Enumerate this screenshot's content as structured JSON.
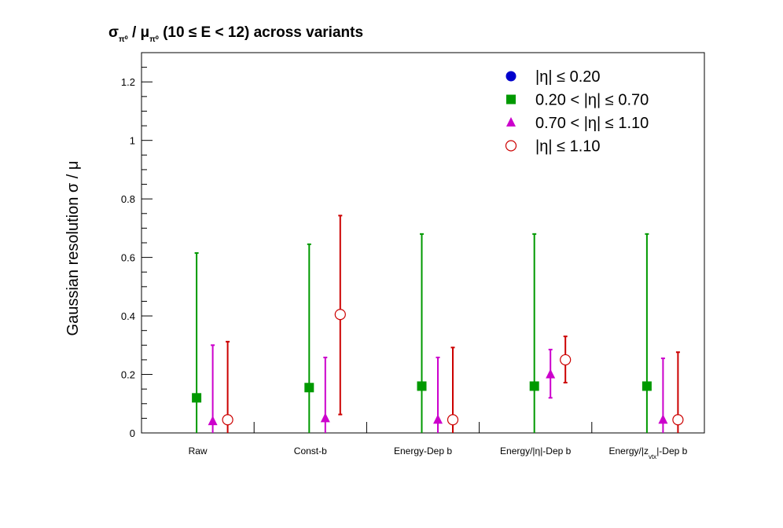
{
  "chart_data": {
    "type": "scatter",
    "title": "σπ⁰ / μπ⁰ (10 ≤ E < 12) across variants",
    "ylabel": "Gaussian resolution  σ / μ",
    "xlabel": "",
    "ylim": [
      0,
      1.3
    ],
    "yticks": [
      "0",
      "0.2",
      "0.4",
      "0.6",
      "0.8",
      "1",
      "1.2"
    ],
    "categories": [
      "Raw",
      "Const-b",
      "Energy-Dep b",
      "Energy/|η|-Dep b",
      "Energy/|z vtx|-Dep b"
    ],
    "legend_position": "top-right",
    "series": [
      {
        "name": "|η| ≤ 0.20",
        "marker": "circle",
        "color": "#0000cc",
        "values": [
          null,
          null,
          null,
          null,
          null
        ],
        "err_low": [
          null,
          null,
          null,
          null,
          null
        ],
        "err_high": [
          null,
          null,
          null,
          null,
          null
        ]
      },
      {
        "name": "0.20 < |η| ≤ 0.70",
        "marker": "square",
        "color": "#009900",
        "values": [
          0.12,
          0.155,
          0.16,
          0.16,
          0.16
        ],
        "err_low": [
          0.0,
          0.0,
          0.0,
          0.0,
          0.0
        ],
        "err_high": [
          0.615,
          0.645,
          0.68,
          0.68,
          0.68
        ]
      },
      {
        "name": "0.70 < |η| ≤ 1.10",
        "marker": "triangle",
        "color": "#cc00cc",
        "values": [
          0.04,
          0.05,
          0.045,
          0.2,
          0.045
        ],
        "err_low": [
          0.0,
          0.0,
          0.0,
          0.12,
          0.0
        ],
        "err_high": [
          0.3,
          0.258,
          0.258,
          0.285,
          0.255
        ]
      },
      {
        "name": "|η| ≤ 1.10",
        "marker": "open-circle",
        "color": "#cc0000",
        "values": [
          0.045,
          0.405,
          0.045,
          0.25,
          0.045
        ],
        "err_low": [
          0.0,
          0.063,
          0.0,
          0.172,
          0.0
        ],
        "err_high": [
          0.312,
          0.743,
          0.292,
          0.33,
          0.276
        ]
      }
    ]
  }
}
